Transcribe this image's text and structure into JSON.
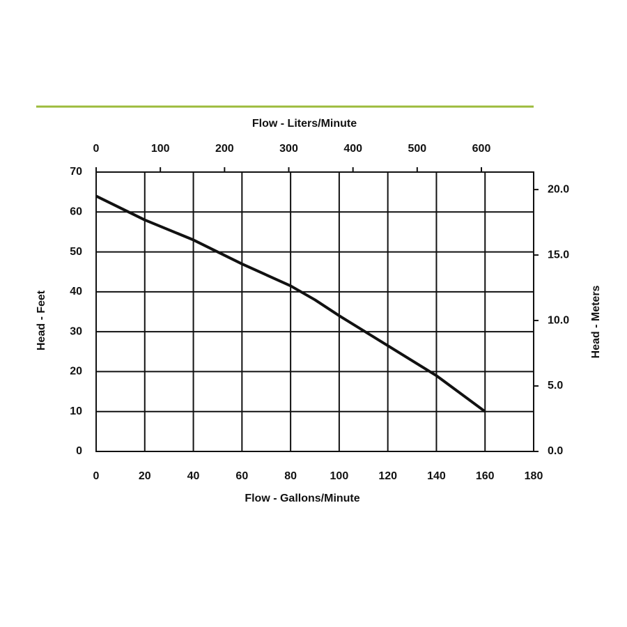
{
  "chart_data": {
    "type": "line",
    "x_label": "Flow - Gallons/Minute",
    "x2_label": "Flow - Liters/Minute",
    "y_label": "Head - Feet",
    "y2_label": "Head - Meters",
    "x": [
      0,
      20,
      40,
      60,
      80,
      90,
      100,
      120,
      140,
      160
    ],
    "values": [
      64,
      58,
      53,
      47,
      41.5,
      38,
      34,
      26.5,
      19,
      10
    ],
    "color": "#111111",
    "xlim": [
      0,
      180
    ],
    "xticks": [
      0,
      20,
      40,
      60,
      80,
      100,
      120,
      140,
      160,
      180
    ],
    "x2lim": [
      0,
      681.37
    ],
    "x2ticks": [
      0,
      100,
      200,
      300,
      400,
      500,
      600
    ],
    "ylim": [
      0,
      70
    ],
    "yticks": [
      0,
      10,
      20,
      30,
      40,
      50,
      60,
      70
    ],
    "y2lim": [
      0,
      21.336
    ],
    "y2ticks": [
      {
        "value": 0,
        "label": "0.0"
      },
      {
        "value": 5,
        "label": "5.0"
      },
      {
        "value": 10,
        "label": "10.0"
      },
      {
        "value": 15,
        "label": "15.0"
      },
      {
        "value": 20,
        "label": "20.0"
      }
    ],
    "grid": true
  }
}
